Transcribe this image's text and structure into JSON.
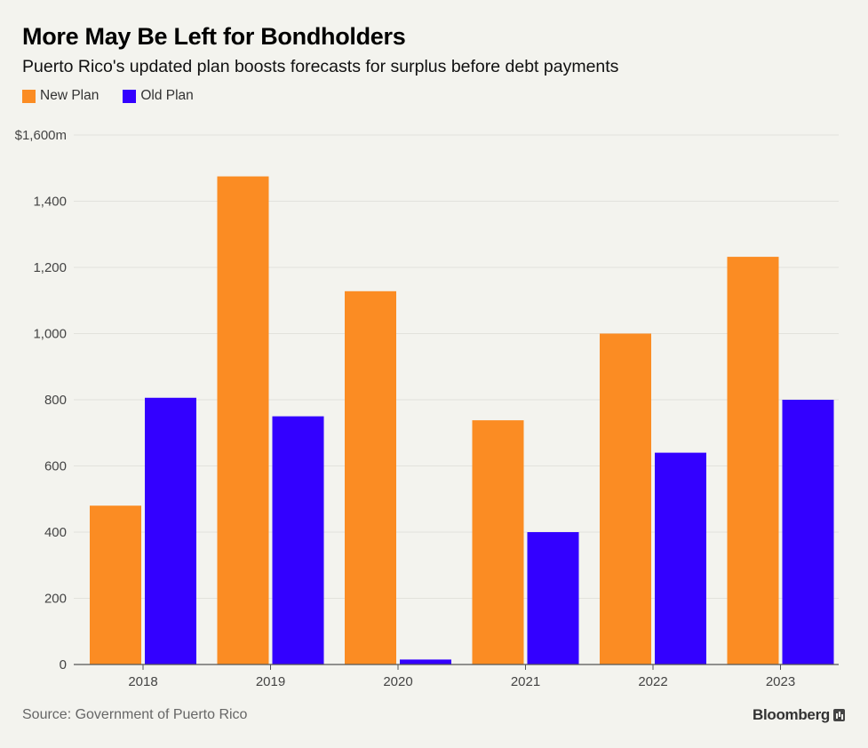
{
  "chart_data": {
    "type": "bar",
    "title": "More May Be Left for Bondholders",
    "subtitle": "Puerto Rico's updated plan boosts forecasts for surplus before debt payments",
    "categories": [
      "2018",
      "2019",
      "2020",
      "2021",
      "2022",
      "2023"
    ],
    "series": [
      {
        "name": "New Plan",
        "color": "#fb8c23",
        "values": [
          480,
          1475,
          1128,
          738,
          1000,
          1232
        ]
      },
      {
        "name": "Old Plan",
        "color": "#3300ff",
        "values": [
          806,
          750,
          15,
          400,
          640,
          800
        ]
      }
    ],
    "ylim": [
      0,
      1600
    ],
    "yticks": [
      {
        "value": 0,
        "label": "0"
      },
      {
        "value": 200,
        "label": "200"
      },
      {
        "value": 400,
        "label": "400"
      },
      {
        "value": 600,
        "label": "600"
      },
      {
        "value": 800,
        "label": "800"
      },
      {
        "value": 1000,
        "label": "1,000"
      },
      {
        "value": 1200,
        "label": "1,200"
      },
      {
        "value": 1400,
        "label": "1,400"
      },
      {
        "value": 1600,
        "label": "$1,600m"
      }
    ],
    "grid": true,
    "legend_position": "top-left"
  },
  "source": "Source: Government of Puerto Rico",
  "brand": "Bloomberg",
  "brand_icon": "bloomberg-chart-icon"
}
